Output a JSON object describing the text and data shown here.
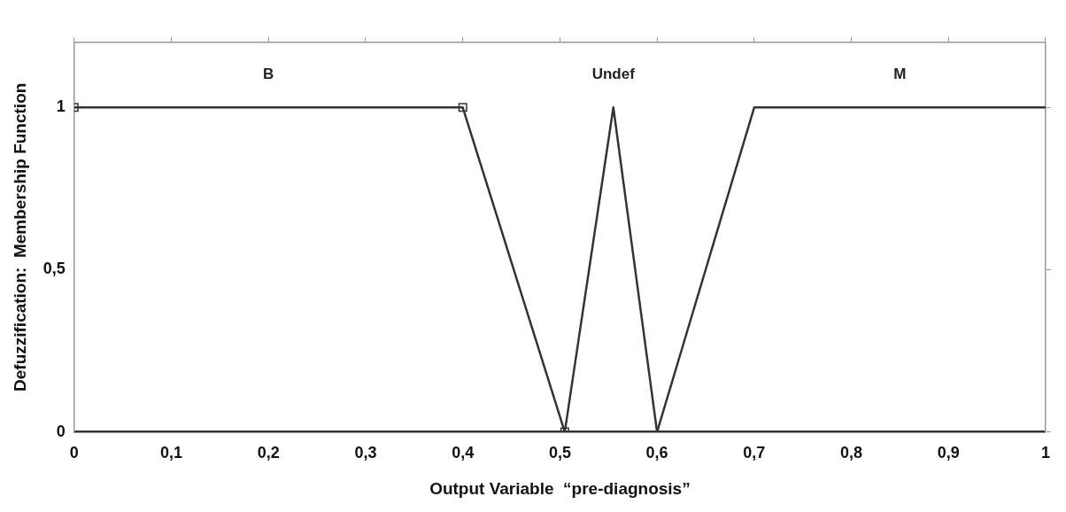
{
  "chart_data": {
    "type": "line",
    "xlabel": "Output Variable  “pre-diagnosis”",
    "ylabel": "Defuzzification:  Membership Function",
    "xlim": [
      0,
      1
    ],
    "ylim": [
      0,
      1.2
    ],
    "xticks": [
      0,
      {
        "value": 0.1,
        "label": "0,1"
      },
      {
        "value": 0.2,
        "label": "0,2"
      },
      {
        "value": 0.3,
        "label": "0,3"
      },
      {
        "value": 0.4,
        "label": "0,4"
      },
      {
        "value": 0.5,
        "label": "0,5"
      },
      {
        "value": 0.6,
        "label": "0,6"
      },
      {
        "value": 0.7,
        "label": "0,7"
      },
      {
        "value": 0.8,
        "label": "0,8"
      },
      {
        "value": 0.9,
        "label": "0,9"
      },
      1
    ],
    "yticks": [
      0,
      {
        "value": 0.5,
        "label": "0,5"
      },
      1
    ],
    "grid": false,
    "legend": false,
    "line_style": "solid",
    "series": [
      {
        "name": "B",
        "color": "#333333",
        "marker": "square",
        "x": [
          0,
          0.4,
          0.505
        ],
        "values": [
          1,
          1,
          0
        ]
      },
      {
        "name": "Undef",
        "color": "#333333",
        "marker": "none",
        "x": [
          0.505,
          0.555,
          0.6
        ],
        "values": [
          0,
          1,
          0
        ]
      },
      {
        "name": "M",
        "color": "#333333",
        "marker": "none",
        "x": [
          0.6,
          0.7,
          1
        ],
        "values": [
          0,
          1,
          1
        ]
      }
    ]
  }
}
